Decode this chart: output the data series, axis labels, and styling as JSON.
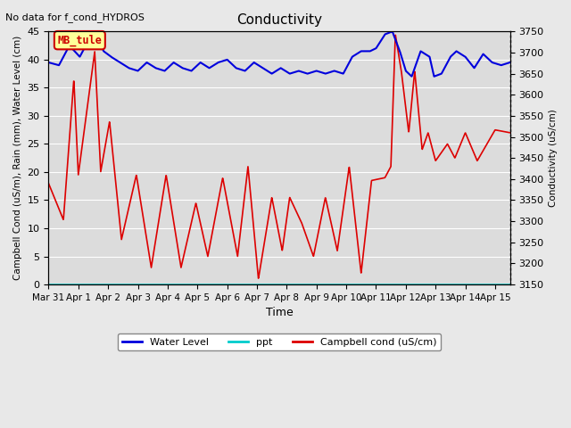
{
  "title": "Conductivity",
  "top_left_text": "No data for f_cond_HYDROS",
  "xlabel": "Time",
  "ylabel_left": "Campbell Cond (uS/m), Rain (mm), Water Level (cm)",
  "ylabel_right": "Conductivity (uS/cm)",
  "xlim_days": [
    0,
    15.5
  ],
  "ylim_left": [
    0,
    45
  ],
  "ylim_right": [
    3150,
    3750
  ],
  "xtick_labels": [
    "Mar 31",
    "Apr 1",
    "Apr 2",
    "Apr 3",
    "Apr 4",
    "Apr 5",
    "Apr 6",
    "Apr 7",
    "Apr 8",
    "Apr 9",
    "Apr 10",
    "Apr 11",
    "Apr 12",
    "Apr 13",
    "Apr 14",
    "Apr 15"
  ],
  "ytick_left": [
    0,
    5,
    10,
    15,
    20,
    25,
    30,
    35,
    40,
    45
  ],
  "ytick_right": [
    3150,
    3200,
    3250,
    3300,
    3350,
    3400,
    3450,
    3500,
    3550,
    3600,
    3650,
    3700,
    3750
  ],
  "background_color": "#e8e8e8",
  "plot_bg_color": "#dcdcdc",
  "grid_color": "#f0f0f0",
  "legend_items": [
    "Water Level",
    "ppt",
    "Campbell cond (uS/cm)"
  ],
  "legend_colors": [
    "#0000cc",
    "#00cccc",
    "#cc0000"
  ],
  "box_label": "MB_tule",
  "box_facecolor": "#ffff99",
  "box_edgecolor": "#cc0000",
  "wl_color": "#0000dd",
  "campbell_color": "#dd0000",
  "ppt_color": "#00cccc"
}
